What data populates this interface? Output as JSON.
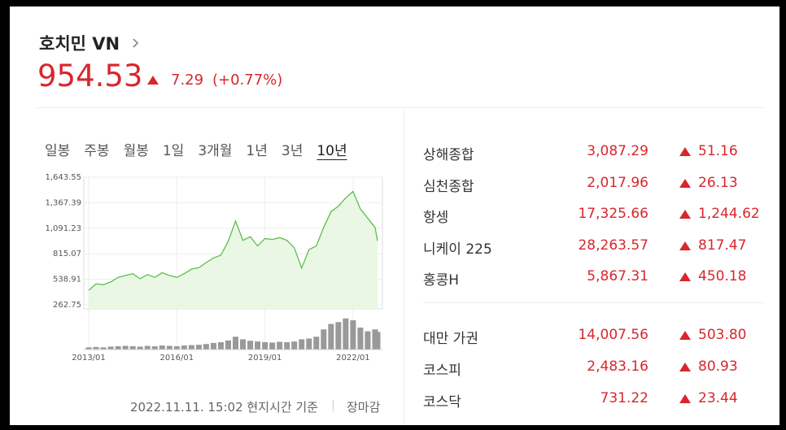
{
  "header": {
    "title": "호치민 VN",
    "price": "954.53",
    "change": "7.29",
    "change_pct": "(+0.77%)"
  },
  "tabs": {
    "items": [
      "일봉",
      "주봉",
      "월봉",
      "1일",
      "3개월",
      "1년",
      "3년",
      "10년"
    ],
    "active": 7
  },
  "chart_data": {
    "type": "line",
    "color": "#5bbf48",
    "area_color": "#e9f7e4",
    "grid": true,
    "x": [
      "2013/01",
      "2013/04",
      "2013/07",
      "2013/10",
      "2014/01",
      "2014/04",
      "2014/07",
      "2014/10",
      "2015/01",
      "2015/04",
      "2015/07",
      "2015/10",
      "2016/01",
      "2016/04",
      "2016/07",
      "2016/10",
      "2017/01",
      "2017/04",
      "2017/07",
      "2017/10",
      "2018/01",
      "2018/04",
      "2018/07",
      "2018/10",
      "2019/01",
      "2019/04",
      "2019/07",
      "2019/10",
      "2020/01",
      "2020/04",
      "2020/07",
      "2020/10",
      "2021/01",
      "2021/04",
      "2021/07",
      "2021/10",
      "2022/01",
      "2022/04",
      "2022/07",
      "2022/10",
      "2022/11"
    ],
    "values": [
      420,
      490,
      480,
      510,
      560,
      580,
      600,
      545,
      590,
      560,
      610,
      580,
      560,
      600,
      650,
      665,
      720,
      770,
      800,
      950,
      1170,
      960,
      1000,
      900,
      980,
      970,
      990,
      960,
      880,
      660,
      860,
      900,
      1100,
      1270,
      1330,
      1420,
      1490,
      1300,
      1200,
      1100,
      954.53
    ],
    "volume": [
      6,
      7,
      6,
      8,
      9,
      10,
      9,
      8,
      10,
      9,
      11,
      10,
      9,
      11,
      12,
      13,
      15,
      18,
      20,
      25,
      35,
      28,
      24,
      22,
      20,
      19,
      21,
      20,
      22,
      28,
      30,
      35,
      55,
      70,
      75,
      85,
      80,
      60,
      50,
      55,
      48
    ],
    "volume_ylim": [
      0,
      100
    ],
    "xlim": [
      "2012/11",
      "2023/01"
    ],
    "xticks": [
      "2013/01",
      "2016/01",
      "2019/01",
      "2022/01"
    ],
    "ylim": [
      218.8,
      1643.55
    ],
    "yticks": [
      {
        "value": 1643.55,
        "label": "1,643.55"
      },
      {
        "value": 1367.39,
        "label": "1,367.39"
      },
      {
        "value": 1091.23,
        "label": "1,091.23"
      },
      815.07,
      538.91,
      262.75
    ]
  },
  "footer": {
    "timestamp": "2022.11.11. 15:02 현지시간 기준",
    "status": "장마감"
  },
  "indices": [
    [
      {
        "name": "상해종합",
        "value": "3,087.29",
        "change": "51.16"
      },
      {
        "name": "심천종합",
        "value": "2,017.96",
        "change": "26.13"
      },
      {
        "name": "항셍",
        "value": "17,325.66",
        "change": "1,244.62"
      },
      {
        "name": "니케이 225",
        "value": "28,263.57",
        "change": "817.47"
      },
      {
        "name": "홍콩H",
        "value": "5,867.31",
        "change": "450.18"
      }
    ],
    [
      {
        "name": "대만 가권",
        "value": "14,007.56",
        "change": "503.80"
      },
      {
        "name": "코스피",
        "value": "2,483.16",
        "change": "80.93"
      },
      {
        "name": "코스닥",
        "value": "731.22",
        "change": "23.44"
      }
    ]
  ]
}
